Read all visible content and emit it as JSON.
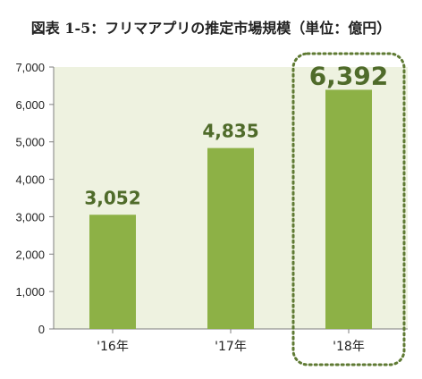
{
  "title": "図表 1-5：フリマアプリの推定市場規模（単位：億円）",
  "colors": {
    "plot_bg": "#eef2e0",
    "bar": "#8db146",
    "label": "#4f6b2a",
    "highlight_border": "#5f7a33"
  },
  "chart_data": {
    "type": "bar",
    "title": "図表 1-5：フリマアプリの推定市場規模（単位：億円）",
    "categories": [
      "'16年",
      "'17年",
      "'18年"
    ],
    "values": [
      3052,
      4835,
      6392
    ],
    "value_labels": [
      "3,052",
      "4,835",
      "6,392"
    ],
    "ylim": [
      0,
      7000
    ],
    "yticks": [
      0,
      1000,
      2000,
      3000,
      4000,
      5000,
      6000,
      7000
    ],
    "ytick_labels": [
      "0",
      "1,000",
      "2,000",
      "3,000",
      "4,000",
      "5,000",
      "6,000",
      "7,000"
    ],
    "xlabel": "",
    "ylabel": "",
    "grid": false,
    "highlighted_category": "'18年"
  }
}
